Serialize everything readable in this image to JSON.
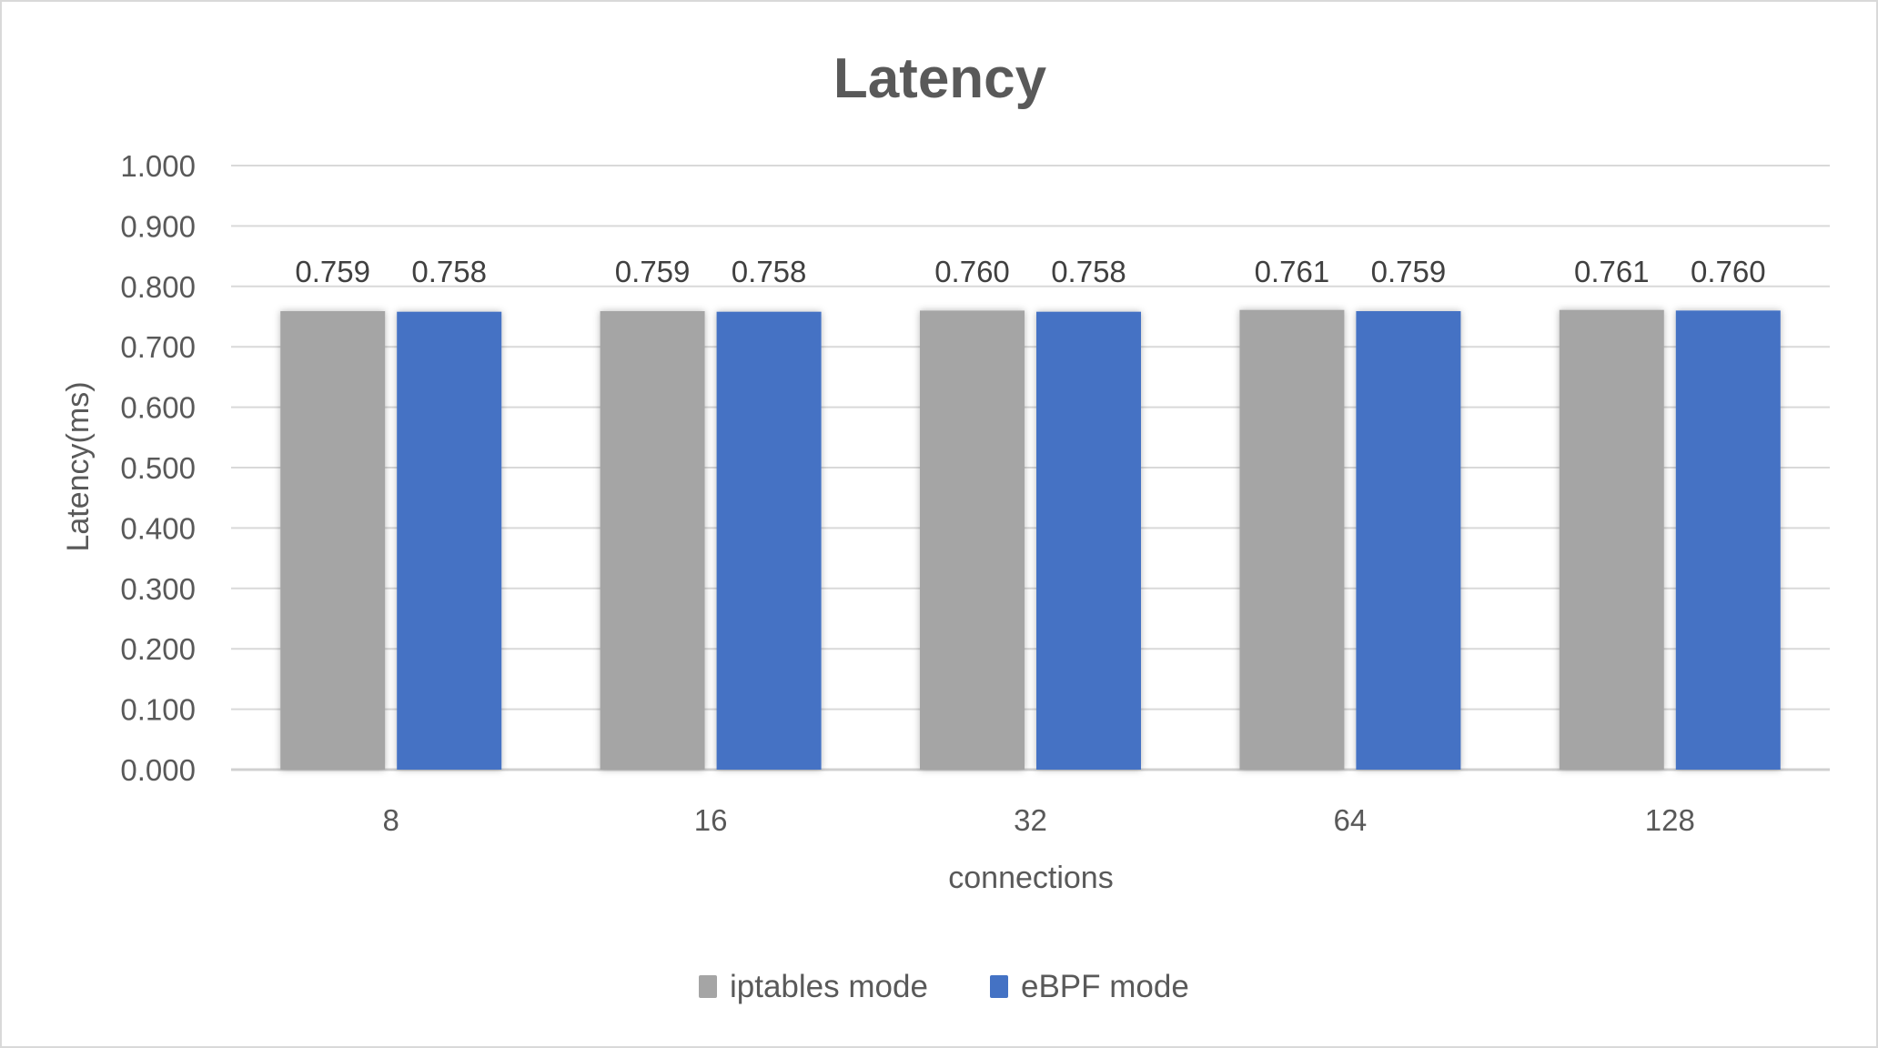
{
  "chart_data": {
    "type": "bar",
    "title": "Latency",
    "xlabel": "connections",
    "ylabel": "Latency(ms)",
    "categories": [
      "8",
      "16",
      "32",
      "64",
      "128"
    ],
    "series": [
      {
        "name": "iptables mode",
        "color": "#A5A5A5",
        "values": [
          0.759,
          0.759,
          0.76,
          0.761,
          0.761
        ],
        "labels": [
          "0.759",
          "0.759",
          "0.760",
          "0.761",
          "0.761"
        ]
      },
      {
        "name": "eBPF mode",
        "color": "#4472C4",
        "values": [
          0.758,
          0.758,
          0.758,
          0.759,
          0.76
        ],
        "labels": [
          "0.758",
          "0.758",
          "0.758",
          "0.759",
          "0.760"
        ]
      }
    ],
    "ylim": [
      0,
      1.0
    ],
    "yticks": [
      "0.000",
      "0.100",
      "0.200",
      "0.300",
      "0.400",
      "0.500",
      "0.600",
      "0.700",
      "0.800",
      "0.900",
      "1.000"
    ],
    "grid": true,
    "legend": "bottom"
  }
}
